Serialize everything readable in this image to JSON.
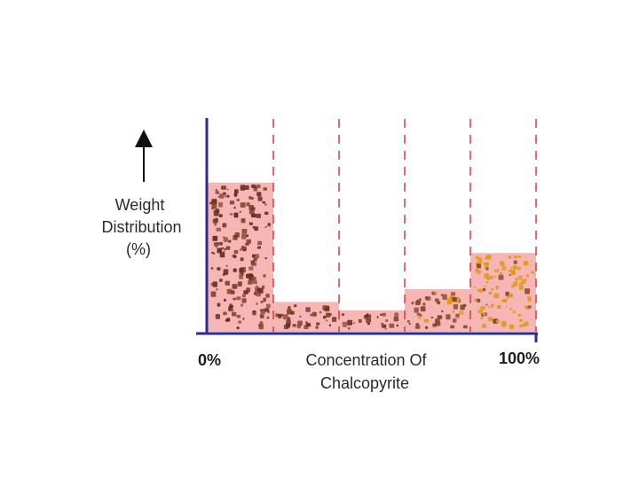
{
  "chart_data": {
    "type": "bar",
    "title": "",
    "xlabel": [
      "Concentration Of",
      "Chalcopyrite"
    ],
    "ylabel": [
      "Weight",
      "Distribution",
      "(%)"
    ],
    "x_tick_labels": [
      "0%",
      "100%"
    ],
    "categories": [
      "",
      "",
      "",
      "",
      ""
    ],
    "values": [
      70,
      14,
      10,
      20,
      37
    ],
    "ylim": [
      0,
      100
    ],
    "grid": false,
    "legend": "none",
    "colors": {
      "bar_fill": "#f6b6b6",
      "axis": "#2b2d8f",
      "divider": "#d83a3a",
      "particle_dark": "#6a2e22",
      "particle_mid": "#8a4a2e",
      "particle_light": "#e2991d"
    },
    "particle_tone": [
      "dark",
      "dark",
      "dark",
      "mixed",
      "light"
    ]
  }
}
